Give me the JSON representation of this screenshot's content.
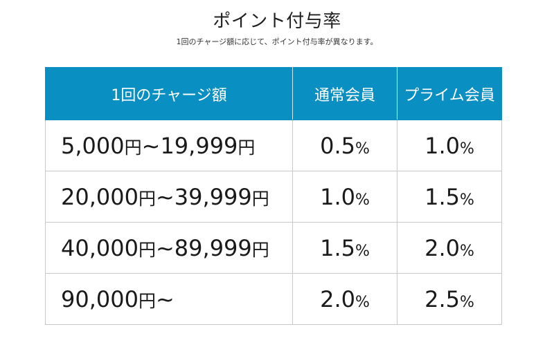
{
  "page": {
    "title": "ポイント付与率",
    "subtitle": "1回のチャージ額に応じて、ポイント付与率が異なります。"
  },
  "table": {
    "headers": {
      "amount": "1回のチャージ額",
      "regular": "通常会員",
      "prime": "プライム会員"
    },
    "rows": [
      {
        "range_from": "5,000",
        "yen1": "円",
        "tilde": "~",
        "range_to": "19,999",
        "yen2": "円",
        "regular": "0.5",
        "prime": "1.0",
        "pct": "%"
      },
      {
        "range_from": "20,000",
        "yen1": "円",
        "tilde": "~",
        "range_to": "39,999",
        "yen2": "円",
        "regular": "1.0",
        "prime": "1.5",
        "pct": "%"
      },
      {
        "range_from": "40,000",
        "yen1": "円",
        "tilde": "~",
        "range_to": "89,999",
        "yen2": "円",
        "regular": "1.5",
        "prime": "2.0",
        "pct": "%"
      },
      {
        "range_from": "90,000",
        "yen1": "円",
        "tilde": "~",
        "range_to": "",
        "yen2": "",
        "regular": "2.0",
        "prime": "2.5",
        "pct": "%"
      }
    ]
  },
  "colors": {
    "header_bg": "#0a8fc2",
    "header_text": "#ffffff",
    "border": "#c8c8c8"
  }
}
